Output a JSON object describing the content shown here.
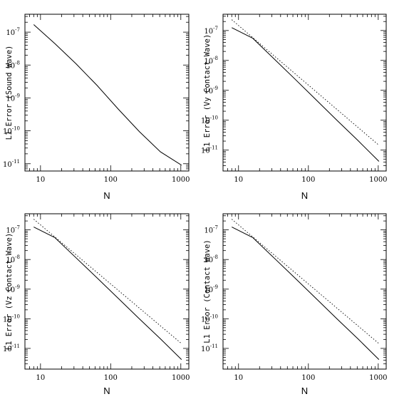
{
  "chart_data": [
    {
      "type": "line",
      "xlabel": "N",
      "ylabel": "L1 Error (Sound Wave)",
      "xscale": "log",
      "yscale": "log",
      "xlim": [
        6,
        1300
      ],
      "ylim": [
        6e-12,
        3.5e-07
      ],
      "xticks": [
        10,
        100,
        1000
      ],
      "xtick_labels": [
        "10",
        "100",
        "1000"
      ],
      "yticks": [
        1e-11,
        1e-10,
        1e-09,
        1e-08,
        1e-07
      ],
      "ytick_labels": [
        {
          "base": "10",
          "exp": "-11"
        },
        {
          "base": "10",
          "exp": "-10"
        },
        {
          "base": "10",
          "exp": "-9"
        },
        {
          "base": "10",
          "exp": "-8"
        },
        {
          "base": "10",
          "exp": "-7"
        }
      ],
      "grid": false,
      "series": [
        {
          "style": "solid",
          "x": [
            8,
            16,
            32,
            64,
            128,
            256,
            512,
            1024
          ],
          "y": [
            1.7e-07,
            4.5e-08,
            1.1e-08,
            2.4e-09,
            4.6e-10,
            9.5e-11,
            2.3e-11,
            9e-12
          ]
        }
      ]
    },
    {
      "type": "line",
      "xlabel": "N",
      "ylabel": "L1 Error (Vy Contact Wave)",
      "xscale": "log",
      "yscale": "log",
      "xlim": [
        6,
        1300
      ],
      "ylim": [
        2e-12,
        3.5e-07
      ],
      "xticks": [
        10,
        100,
        1000
      ],
      "xtick_labels": [
        "10",
        "100",
        "1000"
      ],
      "yticks": [
        1e-11,
        1e-10,
        1e-09,
        1e-08,
        1e-07
      ],
      "ytick_labels": [
        {
          "base": "10",
          "exp": "-11"
        },
        {
          "base": "10",
          "exp": "-10"
        },
        {
          "base": "10",
          "exp": "-9"
        },
        {
          "base": "10",
          "exp": "-8"
        },
        {
          "base": "10",
          "exp": "-7"
        }
      ],
      "grid": false,
      "series": [
        {
          "style": "solid",
          "x": [
            8,
            16,
            32,
            64,
            128,
            256,
            512,
            1024
          ],
          "y": [
            1.25e-07,
            5.5e-08,
            1.15e-08,
            2.4e-09,
            4.9e-10,
            1e-10,
            2.1e-11,
            4.2e-12
          ]
        },
        {
          "style": "dotted",
          "x": [
            8,
            1024
          ],
          "y": [
            2.3e-07,
            1.45e-11
          ]
        }
      ]
    },
    {
      "type": "line",
      "xlabel": "N",
      "ylabel": "L1 Error (Vz Contact Wave)",
      "xscale": "log",
      "yscale": "log",
      "xlim": [
        6,
        1300
      ],
      "ylim": [
        2e-12,
        3.5e-07
      ],
      "xticks": [
        10,
        100,
        1000
      ],
      "xtick_labels": [
        "10",
        "100",
        "1000"
      ],
      "yticks": [
        1e-11,
        1e-10,
        1e-09,
        1e-08,
        1e-07
      ],
      "ytick_labels": [
        {
          "base": "10",
          "exp": "-11"
        },
        {
          "base": "10",
          "exp": "-10"
        },
        {
          "base": "10",
          "exp": "-9"
        },
        {
          "base": "10",
          "exp": "-8"
        },
        {
          "base": "10",
          "exp": "-7"
        }
      ],
      "grid": false,
      "series": [
        {
          "style": "solid",
          "x": [
            8,
            16,
            32,
            64,
            128,
            256,
            512,
            1024
          ],
          "y": [
            1.25e-07,
            5.5e-08,
            1.15e-08,
            2.4e-09,
            4.9e-10,
            1e-10,
            2.1e-11,
            4.2e-12
          ]
        },
        {
          "style": "dotted",
          "x": [
            8,
            1024
          ],
          "y": [
            2.3e-07,
            1.45e-11
          ]
        }
      ]
    },
    {
      "type": "line",
      "xlabel": "N",
      "ylabel": "L1 Error (Contact Wave)",
      "xscale": "log",
      "yscale": "log",
      "xlim": [
        6,
        1300
      ],
      "ylim": [
        2e-12,
        3.5e-07
      ],
      "xticks": [
        10,
        100,
        1000
      ],
      "xtick_labels": [
        "10",
        "100",
        "1000"
      ],
      "yticks": [
        1e-11,
        1e-10,
        1e-09,
        1e-08,
        1e-07
      ],
      "ytick_labels": [
        {
          "base": "10",
          "exp": "-11"
        },
        {
          "base": "10",
          "exp": "-10"
        },
        {
          "base": "10",
          "exp": "-9"
        },
        {
          "base": "10",
          "exp": "-8"
        },
        {
          "base": "10",
          "exp": "-7"
        }
      ],
      "grid": false,
      "series": [
        {
          "style": "solid",
          "x": [
            8,
            16,
            32,
            64,
            128,
            256,
            512,
            1024
          ],
          "y": [
            1.25e-07,
            5.5e-08,
            1.15e-08,
            2.4e-09,
            4.9e-10,
            1e-10,
            2.1e-11,
            4.2e-12
          ]
        },
        {
          "style": "dotted",
          "x": [
            8,
            1024
          ],
          "y": [
            2.3e-07,
            1.45e-11
          ]
        }
      ]
    }
  ]
}
